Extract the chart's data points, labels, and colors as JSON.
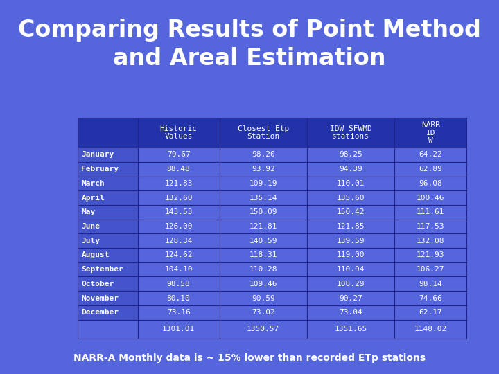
{
  "title": "Comparing Results of Point Method\nand Areal Estimation",
  "subtitle": "NARR-A Monthly data is ~ 15% lower than recorded ETp stations",
  "background_color": "#5566dd",
  "col_headers": [
    "Historic\nValues",
    "Closest Etp\nStation",
    "IDW SFWMD\nstations",
    "NARR\nID\nW"
  ],
  "row_labels": [
    "January",
    "February",
    "March",
    "April",
    "May",
    "June",
    "July",
    "August",
    "September",
    "October",
    "November",
    "December"
  ],
  "data": [
    [
      79.67,
      98.2,
      98.25,
      64.22
    ],
    [
      88.48,
      93.92,
      94.39,
      62.89
    ],
    [
      121.83,
      109.19,
      110.01,
      96.08
    ],
    [
      132.6,
      135.14,
      135.6,
      100.46
    ],
    [
      143.53,
      150.09,
      150.42,
      111.61
    ],
    [
      126.0,
      121.81,
      121.85,
      117.53
    ],
    [
      128.34,
      140.59,
      139.59,
      132.08
    ],
    [
      124.62,
      118.31,
      119.0,
      121.93
    ],
    [
      104.1,
      110.28,
      110.94,
      106.27
    ],
    [
      98.58,
      109.46,
      108.29,
      98.14
    ],
    [
      80.1,
      90.59,
      90.27,
      74.66
    ],
    [
      73.16,
      73.02,
      73.04,
      62.17
    ]
  ],
  "totals": [
    1301.01,
    1350.57,
    1351.65,
    1148.02
  ],
  "header_bg": "#2233aa",
  "row_label_bg": "#4455cc",
  "cell_bg": "#5566dd",
  "grid_color": "#222288",
  "text_color": "#ffffff",
  "title_color": "#ffffff",
  "title_fontsize": 24,
  "header_fontsize": 8,
  "cell_fontsize": 8,
  "label_fontsize": 8,
  "subtitle_fontsize": 10
}
